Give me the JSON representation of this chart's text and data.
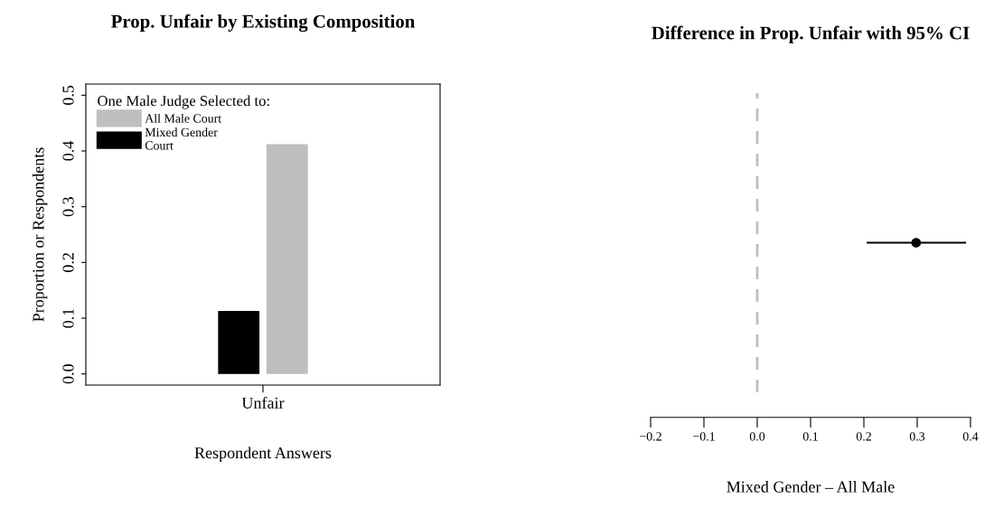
{
  "chart_data": [
    {
      "type": "bar",
      "title": "Prop. Unfair by Existing Composition",
      "xlabel": "Respondent Answers",
      "ylabel": "Proportion or Respondents",
      "legend_title": "One Male Judge Selected to:",
      "legend": "top left",
      "categories": [
        "Unfair"
      ],
      "series": [
        {
          "name": "Mixed Gender\nCourt",
          "color": "#000000",
          "values": [
            0.113
          ]
        },
        {
          "name": "All Male Court",
          "color": "#bebebe",
          "values": [
            0.412
          ]
        }
      ],
      "ylim": [
        -0.02,
        0.52
      ],
      "yticks": [
        {
          "value": 0,
          "label": "0.0"
        },
        0.1,
        0.2,
        0.3,
        0.4,
        0.5
      ]
    },
    {
      "type": "scatter",
      "title": "Difference in Prop. Unfair with 95% CI",
      "xlabel": "Mixed Gender – All Male",
      "orientation": "horizontal",
      "categories": [
        null
      ],
      "series": [
        {
          "color": "#000000",
          "values": [
            0.298
          ],
          "errors": [
            [
              0.207,
              0.39
            ]
          ]
        }
      ],
      "marker": "circle",
      "tick_labels": "x",
      "xlim": [
        -0.2,
        0.4
      ],
      "xticks": [
        {
          "value": -0.2,
          "label": "−0.2"
        },
        {
          "value": -0.1,
          "label": "−0.1"
        },
        {
          "value": 0,
          "label": "0.0"
        },
        0.1,
        0.2,
        0.3,
        0.4
      ],
      "ref_lines": [
        {
          "axis": "x",
          "value": 0,
          "color": "#bebebe",
          "line_style": "dashed"
        }
      ]
    }
  ]
}
